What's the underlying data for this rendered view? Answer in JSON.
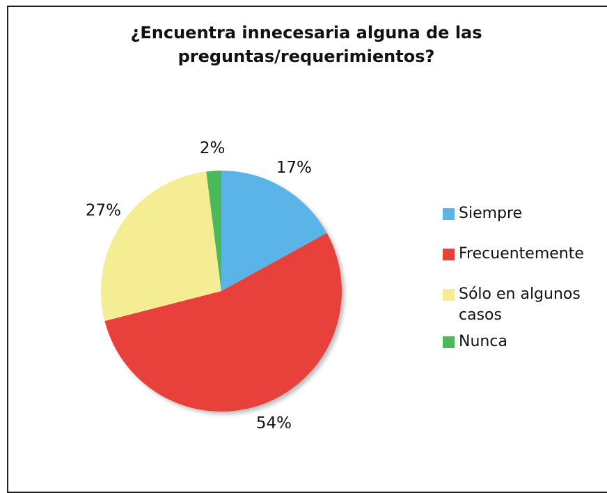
{
  "chart_data": {
    "type": "pie",
    "title": "¿Encuentra innecesaria alguna de las preguntas/requerimientos?",
    "categories": [
      "Siempre",
      "Frecuentemente",
      "Sólo en algunos casos",
      "Nunca"
    ],
    "values": [
      17,
      54,
      27,
      2
    ],
    "value_labels": [
      "17%",
      "54%",
      "27%",
      "2%"
    ],
    "colors": [
      "#5ab4e8",
      "#e8413a",
      "#f5ed93",
      "#4cb85a"
    ],
    "legend": "right"
  }
}
